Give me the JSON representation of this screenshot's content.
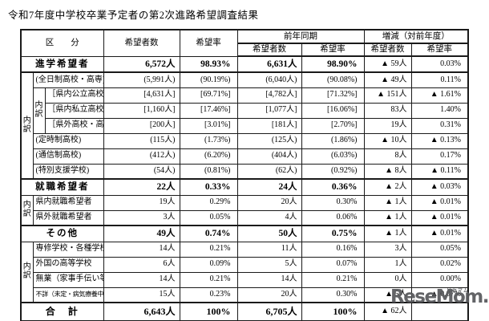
{
  "title": "令和7年度中学校卒業予定者の第2次進路希望調査結果",
  "table": {
    "headers": {
      "category": "区　　分",
      "applicants": "希望者数",
      "rate": "希望率",
      "prev_year": "前年同期",
      "prev_applicants": "希望者数",
      "prev_rate": "希望率",
      "change": "増減（対前年度）",
      "change_applicants": "希望者数",
      "change_rate": "希望率"
    },
    "uchiwake": [
      "内",
      "訳"
    ],
    "rows": [
      {
        "kind": "group",
        "label": "進学希望者",
        "values": [
          "6,572人",
          "98.93%",
          "6,631人",
          "98.90%",
          "▲ 59人",
          "0.03%"
        ]
      },
      {
        "kind": "detail",
        "level": 1,
        "outer_span": 7,
        "section_start": true,
        "label": "(全日制高校・高専)",
        "values": [
          "(5,991人)",
          "(90.19%)",
          "(6,040人)",
          "(90.08%)",
          "▲ 49人",
          "0.11%"
        ]
      },
      {
        "kind": "detail",
        "level": 2,
        "inner_span": 3,
        "label": "［県内公立高校］",
        "values": [
          "[4,631人]",
          "[69.71%]",
          "[4,782人]",
          "[71.32%]",
          "▲ 151人",
          "▲ 1.61%"
        ]
      },
      {
        "kind": "detail",
        "level": 2,
        "label": "［県内私立高校］",
        "values": [
          "[1,160人]",
          "[17.46%]",
          "[1,077人]",
          "[16.06%]",
          "83人",
          "1.40%"
        ]
      },
      {
        "kind": "detail",
        "level": 2,
        "label": "［県外高校・高専］",
        "values": [
          "[200人]",
          "[3.01%]",
          "[181人]",
          "[2.70%]",
          "19人",
          "0.31%"
        ]
      },
      {
        "kind": "detail",
        "level": 1,
        "label": "(定時制高校)",
        "values": [
          "(115人)",
          "(1.73%)",
          "(125人)",
          "(1.86%)",
          "▲ 10人",
          "▲ 0.13%"
        ]
      },
      {
        "kind": "detail",
        "level": 1,
        "label": "(通信制高校)",
        "values": [
          "(412人)",
          "(6.20%)",
          "(404人)",
          "(6.03%)",
          "8人",
          "0.17%"
        ]
      },
      {
        "kind": "detail",
        "level": 1,
        "label": "(特別支援学校)",
        "values": [
          "(54人)",
          "(0.81%)",
          "(62人)",
          "(0.92%)",
          "▲ 8人",
          "▲ 0.11%"
        ]
      },
      {
        "kind": "group",
        "section_start": true,
        "label": "就職希望者",
        "values": [
          "22人",
          "0.33%",
          "24人",
          "0.36%",
          "▲ 2人",
          "▲ 0.03%"
        ]
      },
      {
        "kind": "detail",
        "level": 1,
        "outer_span": 2,
        "label": "県内就職希望者",
        "values": [
          "19人",
          "0.29%",
          "20人",
          "0.30%",
          "▲ 1人",
          "▲ 0.01%"
        ]
      },
      {
        "kind": "detail",
        "level": 1,
        "label": "県外就職希望者",
        "values": [
          "3人",
          "0.05%",
          "4人",
          "0.06%",
          "▲ 1人",
          "▲ 0.01%"
        ]
      },
      {
        "kind": "group",
        "section_start": true,
        "label": "その他",
        "values": [
          "49人",
          "0.74%",
          "50人",
          "0.75%",
          "▲ 1人",
          "▲ 0.01%"
        ]
      },
      {
        "kind": "detail",
        "level": 1,
        "outer_span": 4,
        "label": "専修学校・各種学校",
        "values": [
          "14人",
          "0.21%",
          "11人",
          "0.16%",
          "3人",
          "0.05%"
        ]
      },
      {
        "kind": "detail",
        "level": 1,
        "label": "外国の高等学校",
        "values": [
          "6人",
          "0.09%",
          "5人",
          "0.07%",
          "1人",
          "0.02%"
        ]
      },
      {
        "kind": "detail",
        "level": 1,
        "label": "無業（家事手伝い等）",
        "values": [
          "14人",
          "0.21%",
          "14人",
          "0.21%",
          "0人",
          "0.00%"
        ]
      },
      {
        "kind": "detail",
        "level": 1,
        "small": true,
        "label": "不詳（未定・病気療養中等）",
        "values": [
          "15人",
          "0.23%",
          "20人",
          "0.30%",
          "▲ 5人",
          "▲ 0.07%"
        ]
      },
      {
        "kind": "total",
        "section_start": true,
        "label": "合　計",
        "values": [
          "6,643人",
          "100%",
          "6,705人",
          "100%",
          "▲ 62人",
          ""
        ]
      }
    ]
  },
  "watermark": {
    "text": "ReseMom.",
    "ruby": "リセマム"
  }
}
